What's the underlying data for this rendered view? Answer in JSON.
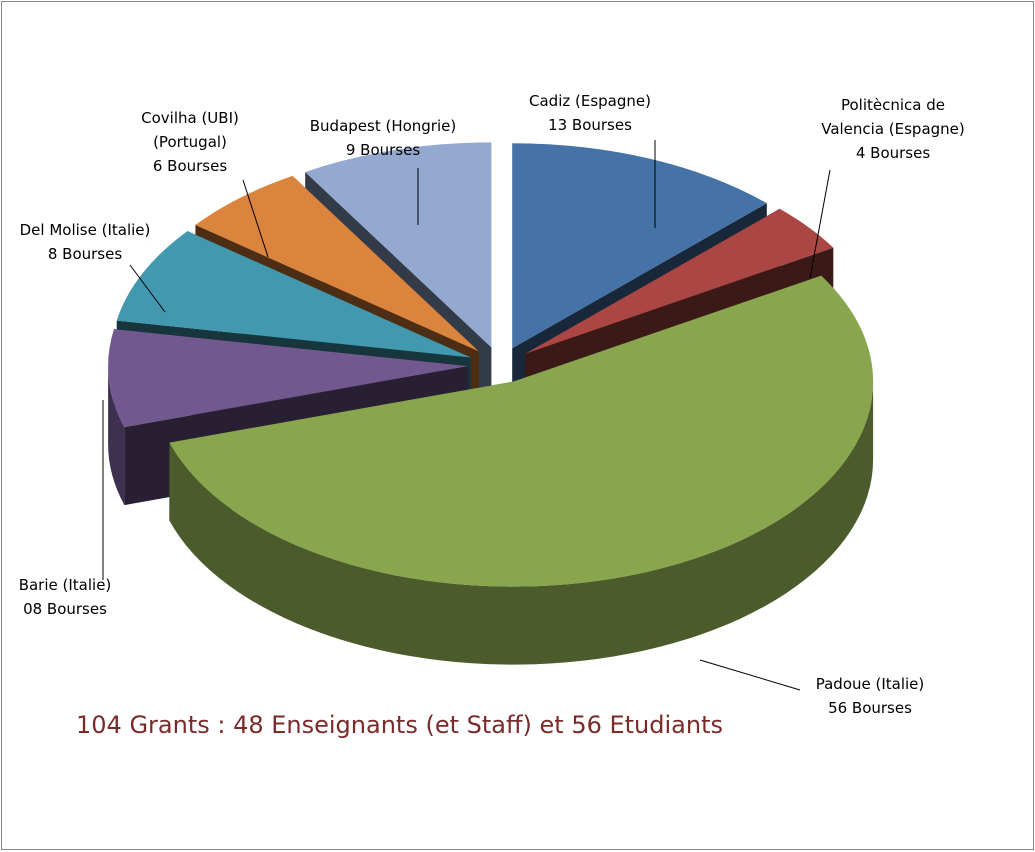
{
  "chart_data": {
    "type": "pie",
    "title": "104 Grants : 48 Enseignants (et Staff) et  56 Etudiants",
    "categories": [
      [
        "Cadiz (Espagne)"
      ],
      [
        "Politècnica de",
        "Valencia (Espagne)"
      ],
      [
        "Padoue (Italie)"
      ],
      [
        "Barie (Italie)"
      ],
      [
        "Del Molise  (Italie)"
      ],
      [
        "Covilha (UBI)",
        "(Portugal)"
      ],
      [
        "Budapest (Hongrie)"
      ]
    ],
    "values": [
      13,
      4,
      56,
      8,
      8,
      6,
      9
    ],
    "value_labels": [
      "13 Bourses",
      "4 Bourses",
      "56 Bourses",
      "08 Bourses",
      "8 Bourses",
      "6 Bourses",
      "9 Bourses"
    ],
    "colors": [
      "#4572a7",
      "#aa4643",
      "#89a54e",
      "#71588f",
      "#4198af",
      "#db843d",
      "#93a9cf"
    ]
  }
}
